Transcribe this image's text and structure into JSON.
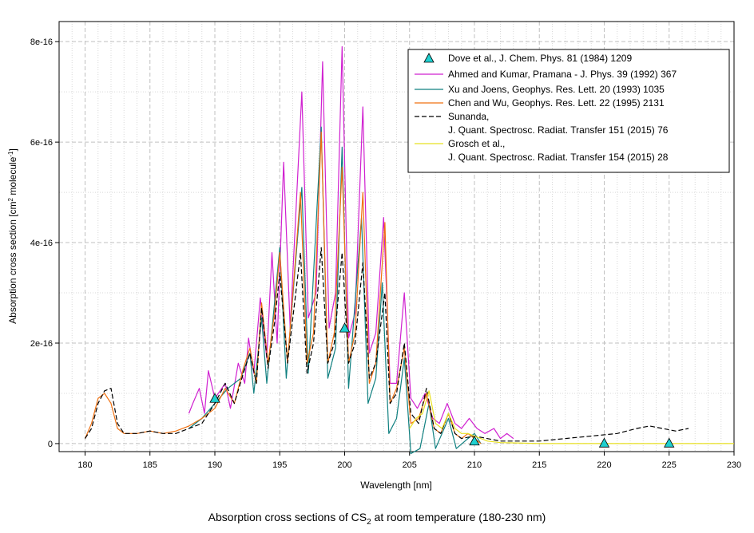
{
  "chart_data": {
    "type": "line",
    "title": "",
    "xlabel": "Wavelength [nm]",
    "ylabel_parts": [
      "Absorption cross section [cm",
      "2",
      " molecule",
      "-1",
      "]"
    ],
    "xlim": [
      178,
      230
    ],
    "ylim": [
      -1.6e-17,
      8.4e-16
    ],
    "xticks": [
      180,
      185,
      190,
      195,
      200,
      205,
      210,
      215,
      220,
      225,
      230
    ],
    "yticks": [
      0,
      2e-16,
      4e-16,
      6e-16,
      8e-16
    ],
    "ytick_labels": [
      "0",
      "2e-16",
      "4e-16",
      "6e-16",
      "8e-16"
    ],
    "grid": true,
    "legend_position": "top-right",
    "series": [
      {
        "name": "Dove et al., J. Chem. Phys. 81 (1984) 1209",
        "kind": "markers",
        "color": "#20d0d0",
        "points": [
          [
            190,
            9e-17
          ],
          [
            200,
            2.3e-16
          ],
          [
            210,
            5e-18
          ],
          [
            220,
            1e-18
          ],
          [
            225,
            1e-18
          ]
        ]
      },
      {
        "name": "Ahmed and Kumar, Pramana - J. Phys. 39 (1992) 367",
        "kind": "line",
        "color": "#d020d0",
        "points": [
          [
            188,
            6e-17
          ],
          [
            188.3,
            8e-17
          ],
          [
            188.8,
            1.1e-16
          ],
          [
            189.2,
            6e-17
          ],
          [
            189.5,
            1.45e-16
          ],
          [
            190,
            9e-17
          ],
          [
            190.8,
            1.2e-16
          ],
          [
            191.2,
            7e-17
          ],
          [
            191.8,
            1.6e-16
          ],
          [
            192.3,
            1.2e-16
          ],
          [
            192.6,
            2.1e-16
          ],
          [
            193,
            1.4e-16
          ],
          [
            193.5,
            2.9e-16
          ],
          [
            194,
            1.7e-16
          ],
          [
            194.4,
            3.8e-16
          ],
          [
            194.8,
            2e-16
          ],
          [
            195.3,
            5.6e-16
          ],
          [
            195.8,
            2.3e-16
          ],
          [
            196.7,
            7e-16
          ],
          [
            197.2,
            2.5e-16
          ],
          [
            197.8,
            3e-16
          ],
          [
            198.3,
            7.6e-16
          ],
          [
            198.8,
            2.3e-16
          ],
          [
            199.3,
            3e-16
          ],
          [
            199.8,
            7.9e-16
          ],
          [
            200.3,
            2.1e-16
          ],
          [
            200.8,
            2.6e-16
          ],
          [
            201.4,
            6.7e-16
          ],
          [
            201.9,
            1.8e-16
          ],
          [
            202.4,
            2.2e-16
          ],
          [
            203,
            4.5e-16
          ],
          [
            203.5,
            1.2e-16
          ],
          [
            204,
            1.2e-16
          ],
          [
            204.6,
            3e-16
          ],
          [
            205.1,
            9e-17
          ],
          [
            205.6,
            7e-17
          ],
          [
            206.2,
            1e-16
          ],
          [
            206.8,
            5e-17
          ],
          [
            207.3,
            4e-17
          ],
          [
            207.9,
            8e-17
          ],
          [
            208.5,
            4e-17
          ],
          [
            209,
            3e-17
          ],
          [
            209.6,
            5e-17
          ],
          [
            210.2,
            3e-17
          ],
          [
            210.8,
            2e-17
          ],
          [
            211.5,
            3e-17
          ],
          [
            212,
            1e-17
          ],
          [
            212.5,
            2e-17
          ],
          [
            213,
            1e-17
          ]
        ]
      },
      {
        "name": "Xu and Joens, Geophys. Res. Lett. 20 (1993) 1035",
        "kind": "line",
        "color": "#108080",
        "points": [
          [
            188,
            3e-17
          ],
          [
            189,
            5e-17
          ],
          [
            190,
            8e-17
          ],
          [
            191,
            1.1e-16
          ],
          [
            192,
            1.3e-16
          ],
          [
            192.7,
            1.8e-16
          ],
          [
            193,
            1e-16
          ],
          [
            193.6,
            2.5e-16
          ],
          [
            194,
            1.2e-16
          ],
          [
            194.6,
            2.8e-16
          ],
          [
            195,
            3.9e-16
          ],
          [
            195.5,
            1.3e-16
          ],
          [
            196.5,
            4.5e-16
          ],
          [
            196.7,
            5.1e-16
          ],
          [
            197.2,
            1.4e-16
          ],
          [
            198.2,
            6.3e-16
          ],
          [
            198.7,
            1.3e-16
          ],
          [
            199.3,
            1.9e-16
          ],
          [
            199.8,
            5.9e-16
          ],
          [
            200.3,
            1.1e-16
          ],
          [
            201.3,
            4.5e-16
          ],
          [
            201.8,
            8e-17
          ],
          [
            202.4,
            1.3e-16
          ],
          [
            202.9,
            3.2e-16
          ],
          [
            203.4,
            2e-17
          ],
          [
            204,
            5e-17
          ],
          [
            204.6,
            1.7e-16
          ],
          [
            205.1,
            -2e-17
          ],
          [
            205.8,
            -1e-17
          ],
          [
            206.5,
            8e-17
          ],
          [
            207,
            -1e-17
          ],
          [
            208,
            5e-17
          ],
          [
            208.6,
            -1e-17
          ],
          [
            209.5,
            1e-17
          ],
          [
            210,
            2e-17
          ],
          [
            210.5,
            0
          ]
        ]
      },
      {
        "name": "Chen and Wu, Geophys. Res. Lett. 22 (1995) 2131",
        "kind": "line",
        "color": "#f07010",
        "points": [
          [
            180,
            1e-17
          ],
          [
            180.5,
            4e-17
          ],
          [
            181,
            9e-17
          ],
          [
            181.5,
            1e-16
          ],
          [
            182,
            8e-17
          ],
          [
            182.5,
            3e-17
          ],
          [
            183,
            2e-17
          ],
          [
            184,
            2e-17
          ],
          [
            185,
            2.5e-17
          ],
          [
            186,
            2e-17
          ],
          [
            187,
            2.5e-17
          ],
          [
            188,
            3.5e-17
          ],
          [
            189,
            5e-17
          ],
          [
            190,
            7e-17
          ],
          [
            190.8,
            1.1e-16
          ],
          [
            191.5,
            8e-17
          ],
          [
            192.2,
            1.5e-16
          ],
          [
            192.7,
            1.9e-16
          ],
          [
            193.2,
            1.2e-16
          ],
          [
            193.6,
            2.8e-16
          ],
          [
            194.1,
            1.6e-16
          ],
          [
            194.6,
            2.6e-16
          ],
          [
            195,
            3.8e-16
          ],
          [
            195.6,
            1.6e-16
          ],
          [
            196.6,
            5e-16
          ],
          [
            197.1,
            1.6e-16
          ],
          [
            197.6,
            2.2e-16
          ],
          [
            198.2,
            6.2e-16
          ],
          [
            198.7,
            1.6e-16
          ],
          [
            199.2,
            2.2e-16
          ],
          [
            199.8,
            5.5e-16
          ],
          [
            200.3,
            1.6e-16
          ],
          [
            200.8,
            2.2e-16
          ],
          [
            201.4,
            5e-16
          ],
          [
            201.9,
            1.2e-16
          ],
          [
            202.4,
            1.6e-16
          ],
          [
            203.1,
            4.4e-16
          ],
          [
            203.5,
            8e-17
          ],
          [
            204,
            1.1e-16
          ],
          [
            204.6,
            1.9e-16
          ],
          [
            205.1,
            4e-17
          ],
          [
            205.7,
            5e-17
          ],
          [
            206.3,
            1e-16
          ],
          [
            206.9,
            3e-17
          ],
          [
            207.4,
            2e-17
          ],
          [
            208,
            6e-17
          ],
          [
            208.5,
            2e-17
          ],
          [
            209,
            1e-17
          ],
          [
            209.5,
            2e-17
          ],
          [
            210,
            1e-17
          ],
          [
            210.5,
            0
          ]
        ]
      },
      {
        "name": "Sunanda, J. Quant. Spectrosc. Radiat. Transfer 151 (2015) 76",
        "kind": "line",
        "dash": true,
        "color": "#000000",
        "points": [
          [
            180,
            1e-17
          ],
          [
            180.5,
            3e-17
          ],
          [
            181,
            8e-17
          ],
          [
            181.5,
            1.05e-16
          ],
          [
            182,
            1.1e-16
          ],
          [
            182.5,
            4e-17
          ],
          [
            183,
            2e-17
          ],
          [
            184,
            2e-17
          ],
          [
            185,
            2.5e-17
          ],
          [
            186,
            2e-17
          ],
          [
            187,
            2e-17
          ],
          [
            188,
            3e-17
          ],
          [
            189,
            4e-17
          ],
          [
            190,
            8e-17
          ],
          [
            190.8,
            1.2e-16
          ],
          [
            191.5,
            8e-17
          ],
          [
            192.2,
            1.4e-16
          ],
          [
            192.7,
            1.8e-16
          ],
          [
            193.2,
            1.2e-16
          ],
          [
            193.6,
            2.7e-16
          ],
          [
            194.1,
            1.5e-16
          ],
          [
            194.6,
            2.4e-16
          ],
          [
            195,
            3.4e-16
          ],
          [
            195.6,
            1.6e-16
          ],
          [
            196.6,
            3.8e-16
          ],
          [
            197.1,
            1.4e-16
          ],
          [
            197.6,
            2e-16
          ],
          [
            198.2,
            3.9e-16
          ],
          [
            198.7,
            1.6e-16
          ],
          [
            199.2,
            2e-16
          ],
          [
            199.8,
            3.8e-16
          ],
          [
            200.3,
            1.6e-16
          ],
          [
            200.8,
            2e-16
          ],
          [
            201.4,
            3.6e-16
          ],
          [
            201.9,
            1.3e-16
          ],
          [
            202.4,
            1.6e-16
          ],
          [
            203.1,
            3e-16
          ],
          [
            203.5,
            8e-17
          ],
          [
            204,
            1e-16
          ],
          [
            204.6,
            2e-16
          ],
          [
            205.1,
            6e-17
          ],
          [
            205.7,
            4e-17
          ],
          [
            206.3,
            1.1e-16
          ],
          [
            206.9,
            3e-17
          ],
          [
            207.4,
            2e-17
          ],
          [
            208,
            6e-17
          ],
          [
            208.5,
            2e-17
          ],
          [
            209,
            1e-17
          ],
          [
            210,
            1.5e-17
          ],
          [
            212,
            5e-18
          ],
          [
            215,
            5e-18
          ],
          [
            217,
            1e-17
          ],
          [
            219,
            1.5e-17
          ],
          [
            221,
            2e-17
          ],
          [
            222.5,
            3e-17
          ],
          [
            223.5,
            3.5e-17
          ],
          [
            224.5,
            3e-17
          ],
          [
            225.5,
            2.5e-17
          ],
          [
            226.5,
            3e-17
          ]
        ]
      },
      {
        "name": "Grosch et al., J. Quant. Spectrosc. Radiat. Transfer 154 (2015) 28",
        "kind": "line",
        "color": "#e8e020",
        "points": [
          [
            205,
            3e-17
          ],
          [
            205.5,
            5e-17
          ],
          [
            206,
            6e-17
          ],
          [
            206.5,
            1.05e-16
          ],
          [
            207,
            4e-17
          ],
          [
            207.5,
            3e-17
          ],
          [
            208,
            6e-17
          ],
          [
            208.5,
            3e-17
          ],
          [
            209,
            2e-17
          ],
          [
            209.5,
            2e-17
          ],
          [
            210,
            1.5e-17
          ],
          [
            211,
            5e-18
          ],
          [
            212,
            2e-18
          ],
          [
            215,
            0
          ],
          [
            220,
            0
          ],
          [
            225,
            0
          ],
          [
            230,
            0
          ]
        ]
      }
    ],
    "legend_labels": [
      [
        "Dove et al., J. Chem. Phys. 81 (1984) 1209"
      ],
      [
        "Ahmed and Kumar, Pramana - J. Phys. 39 (1992) 367"
      ],
      [
        "Xu and Joens, Geophys. Res. Lett. 20 (1993) 1035"
      ],
      [
        "Chen and Wu, Geophys. Res. Lett. 22 (1995) 2131"
      ],
      [
        "Sunanda,",
        "J. Quant. Spectrosc. Radiat. Transfer 151 (2015) 76"
      ],
      [
        "Grosch et al.,",
        "J. Quant. Spectrosc. Radiat. Transfer 154 (2015) 28"
      ]
    ]
  },
  "caption": {
    "prefix": "Absorption cross sections of CS",
    "subscript": "2",
    "suffix": " at room temperature (180-230 nm)"
  }
}
